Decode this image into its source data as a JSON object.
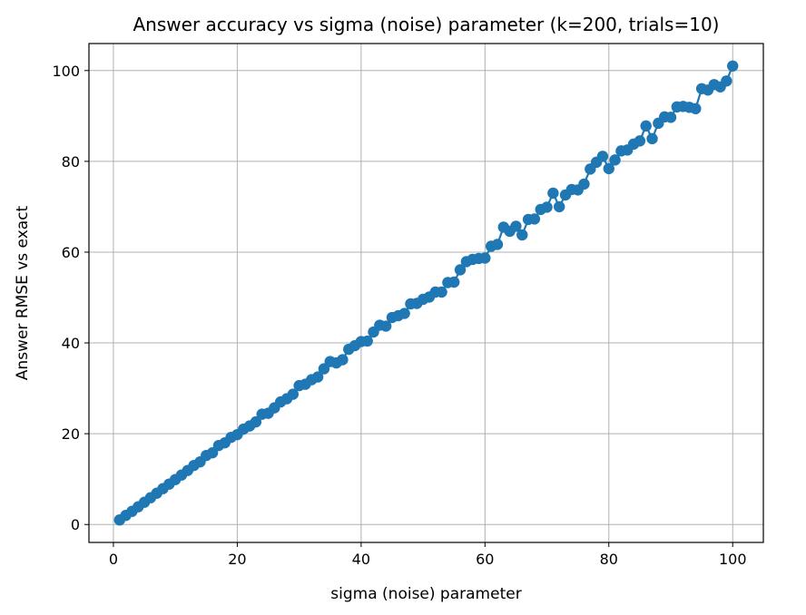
{
  "chart_data": {
    "type": "line",
    "title": "Answer accuracy vs sigma (noise) parameter (k=200, trials=10)",
    "xlabel": "sigma (noise) parameter",
    "ylabel": "Answer RMSE vs exact",
    "xlim": [
      -3.95,
      104.95
    ],
    "ylim": [
      -3.95,
      105.95
    ],
    "xticks": [
      0,
      20,
      40,
      60,
      80,
      100
    ],
    "yticks": [
      0,
      20,
      40,
      60,
      80,
      100
    ],
    "grid": true,
    "marker": "circle",
    "color": "#1f77b4",
    "series": [
      {
        "x": [
          1,
          2,
          3,
          4,
          5,
          6,
          7,
          8,
          9,
          10,
          11,
          12,
          13,
          14,
          15,
          16,
          17,
          18,
          19,
          20,
          21,
          22,
          23,
          24,
          25,
          26,
          27,
          28,
          29,
          30,
          31,
          32,
          33,
          34,
          35,
          36,
          37,
          38,
          39,
          40,
          41,
          42,
          43,
          44,
          45,
          46,
          47,
          48,
          49,
          50,
          51,
          52,
          53,
          54,
          55,
          56,
          57,
          58,
          59,
          60,
          61,
          62,
          63,
          64,
          65,
          66,
          67,
          68,
          69,
          70,
          71,
          72,
          73,
          74,
          75,
          76,
          77,
          78,
          79,
          80,
          81,
          82,
          83,
          84,
          85,
          86,
          87,
          88,
          89,
          90,
          91,
          92,
          93,
          94,
          95,
          96,
          97,
          98,
          99,
          100
        ],
        "values": [
          1.0,
          2.0,
          2.9,
          3.9,
          4.9,
          5.9,
          6.9,
          7.9,
          8.9,
          9.9,
          10.9,
          11.9,
          13.0,
          13.8,
          15.2,
          15.8,
          17.4,
          18.0,
          19.2,
          19.8,
          21.0,
          21.7,
          22.6,
          24.3,
          24.5,
          25.7,
          27.0,
          27.7,
          28.7,
          30.6,
          30.9,
          31.9,
          32.5,
          34.3,
          35.9,
          35.6,
          36.3,
          38.6,
          39.4,
          40.3,
          40.4,
          42.4,
          43.9,
          43.7,
          45.6,
          46.0,
          46.5,
          48.6,
          48.7,
          49.6,
          50.1,
          51.2,
          51.2,
          53.3,
          53.4,
          56.1,
          57.9,
          58.4,
          58.6,
          58.7,
          61.3,
          61.7,
          65.5,
          64.6,
          65.7,
          63.8,
          67.2,
          67.3,
          69.4,
          69.9,
          73.0,
          70.0,
          72.6,
          73.8,
          73.7,
          75.0,
          78.3,
          79.8,
          81.1,
          78.4,
          80.3,
          82.3,
          82.5,
          83.8,
          84.5,
          87.8,
          85.0,
          88.4,
          89.8,
          89.7,
          92.0,
          92.1,
          91.9,
          91.6,
          96.0,
          95.7,
          96.9,
          96.4,
          97.7,
          101.0
        ]
      }
    ]
  }
}
